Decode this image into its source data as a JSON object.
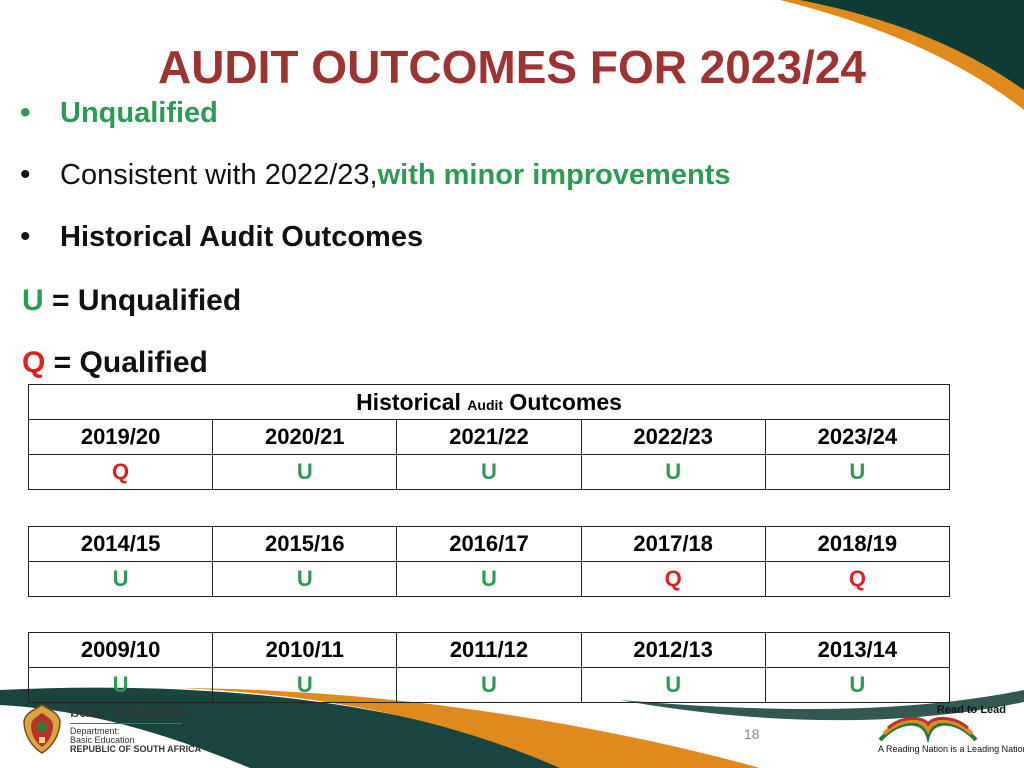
{
  "title": "AUDIT OUTCOMES FOR 2023/24",
  "bullets": {
    "b1": "Unqualified",
    "b2_prefix": "Consistent with 2022/23, ",
    "b2_highlight": "with minor improvements",
    "b3": "Historical Audit Outcomes"
  },
  "legend": {
    "u_letter": "U",
    "u_text": " = Unqualified",
    "q_letter": "Q",
    "q_text": " = Qualified"
  },
  "table": {
    "caption_part1": "Historical ",
    "caption_part2": "Audit",
    "caption_part3": " Outcomes",
    "groups": [
      {
        "years": [
          "2019/20",
          "2020/21",
          "2021/22",
          "2022/23",
          "2023/24"
        ],
        "outcomes": [
          "Q",
          "U",
          "U",
          "U",
          "U"
        ]
      },
      {
        "years": [
          "2014/15",
          "2015/16",
          "2016/17",
          "2017/18",
          "2018/19"
        ],
        "outcomes": [
          "U",
          "U",
          "U",
          "Q",
          "Q"
        ]
      },
      {
        "years": [
          "2009/10",
          "2010/11",
          "2011/12",
          "2012/13",
          "2013/14"
        ],
        "outcomes": [
          "U",
          "U",
          "U",
          "U",
          "U"
        ]
      }
    ]
  },
  "footer": {
    "page_number": "18",
    "logo_main": "basic education",
    "logo_line1": "Department:",
    "logo_line2": "Basic Education",
    "logo_line3": "REPUBLIC OF SOUTH AFRICA",
    "rtl_top": "Read to Lead",
    "rtl_bottom": "A Reading Nation is a Leading Nation"
  },
  "colors": {
    "title": "#9c3434",
    "green": "#2e9a55",
    "red": "#e02020",
    "teal": "#0e3b34",
    "orange": "#e08a1e"
  }
}
